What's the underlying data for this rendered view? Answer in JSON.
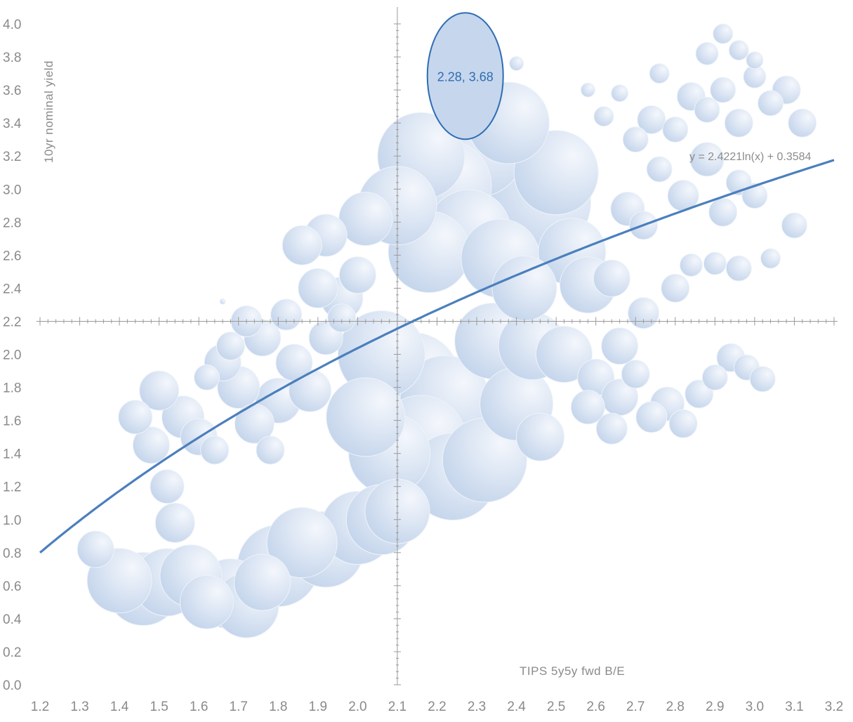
{
  "chart_data": {
    "type": "scatter",
    "title": "",
    "xlabel": "TIPS 5y5y fwd B/E",
    "ylabel": "10yr nominal yield",
    "xlim": [
      1.2,
      3.2
    ],
    "ylim": [
      0.0,
      4.0
    ],
    "x_ticks": [
      "1.2",
      "1.3",
      "1.4",
      "1.5",
      "1.6",
      "1.7",
      "1.8",
      "1.9",
      "2.0",
      "2.1",
      "2.2",
      "2.3",
      "2.4",
      "2.5",
      "2.6",
      "2.7",
      "2.8",
      "2.9",
      "3.0",
      "3.1",
      "3.2"
    ],
    "y_ticks": [
      "0.0",
      "0.2",
      "0.4",
      "0.6",
      "0.8",
      "1.0",
      "1.2",
      "1.4",
      "1.6",
      "1.8",
      "2.0",
      "2.2",
      "2.4",
      "2.6",
      "2.8",
      "3.0",
      "3.2",
      "3.4",
      "3.6",
      "3.8",
      "4.0"
    ],
    "axis_crossing": {
      "x": 2.1,
      "y": 2.2
    },
    "bubble_color": "#c9d8ec",
    "bubble_edge_color": "#eef3fa",
    "trendline": {
      "type": "logarithmic",
      "a": 2.4221,
      "b": 0.3584,
      "label": "y = 2.4221ln(x) + 0.3584",
      "color": "#4b7fbd"
    },
    "highlight": {
      "x": 2.28,
      "y": 3.68,
      "label": "2.28,  3.68",
      "color": "#2e6db3"
    },
    "points": [
      {
        "x": 1.34,
        "y": 0.82,
        "r": 26
      },
      {
        "x": 1.4,
        "y": 0.63,
        "r": 46
      },
      {
        "x": 1.46,
        "y": 0.58,
        "r": 52
      },
      {
        "x": 1.52,
        "y": 0.62,
        "r": 48
      },
      {
        "x": 1.58,
        "y": 0.66,
        "r": 44
      },
      {
        "x": 1.68,
        "y": 0.55,
        "r": 50
      },
      {
        "x": 1.72,
        "y": 0.48,
        "r": 46
      },
      {
        "x": 1.8,
        "y": 0.72,
        "r": 58
      },
      {
        "x": 1.86,
        "y": 0.86,
        "r": 50
      },
      {
        "x": 1.92,
        "y": 0.82,
        "r": 54
      },
      {
        "x": 2.0,
        "y": 0.95,
        "r": 52
      },
      {
        "x": 2.06,
        "y": 1.0,
        "r": 50
      },
      {
        "x": 2.1,
        "y": 1.05,
        "r": 46
      },
      {
        "x": 1.76,
        "y": 0.62,
        "r": 40
      },
      {
        "x": 1.62,
        "y": 0.5,
        "r": 38
      },
      {
        "x": 1.54,
        "y": 0.98,
        "r": 28
      },
      {
        "x": 1.52,
        "y": 1.2,
        "r": 24
      },
      {
        "x": 1.48,
        "y": 1.45,
        "r": 26
      },
      {
        "x": 1.44,
        "y": 1.62,
        "r": 24
      },
      {
        "x": 1.5,
        "y": 1.78,
        "r": 28
      },
      {
        "x": 1.56,
        "y": 1.62,
        "r": 30
      },
      {
        "x": 1.6,
        "y": 1.5,
        "r": 26
      },
      {
        "x": 1.64,
        "y": 1.42,
        "r": 20
      },
      {
        "x": 1.66,
        "y": 1.95,
        "r": 26
      },
      {
        "x": 1.7,
        "y": 1.8,
        "r": 30
      },
      {
        "x": 1.74,
        "y": 1.58,
        "r": 28
      },
      {
        "x": 1.78,
        "y": 1.42,
        "r": 20
      },
      {
        "x": 1.8,
        "y": 1.72,
        "r": 32
      },
      {
        "x": 1.84,
        "y": 1.95,
        "r": 26
      },
      {
        "x": 1.88,
        "y": 1.78,
        "r": 30
      },
      {
        "x": 1.92,
        "y": 2.1,
        "r": 24
      },
      {
        "x": 1.9,
        "y": 2.4,
        "r": 28
      },
      {
        "x": 1.96,
        "y": 2.34,
        "r": 30
      },
      {
        "x": 2.0,
        "y": 2.48,
        "r": 26
      },
      {
        "x": 1.86,
        "y": 2.66,
        "r": 28
      },
      {
        "x": 1.92,
        "y": 2.72,
        "r": 30
      },
      {
        "x": 2.02,
        "y": 2.82,
        "r": 38
      },
      {
        "x": 2.1,
        "y": 2.9,
        "r": 56
      },
      {
        "x": 2.16,
        "y": 3.2,
        "r": 62
      },
      {
        "x": 2.22,
        "y": 3.02,
        "r": 66
      },
      {
        "x": 2.3,
        "y": 3.24,
        "r": 68
      },
      {
        "x": 2.38,
        "y": 3.4,
        "r": 58
      },
      {
        "x": 2.46,
        "y": 2.92,
        "r": 72
      },
      {
        "x": 2.5,
        "y": 3.1,
        "r": 60
      },
      {
        "x": 2.18,
        "y": 2.62,
        "r": 58
      },
      {
        "x": 2.28,
        "y": 2.74,
        "r": 60
      },
      {
        "x": 2.36,
        "y": 2.58,
        "r": 56
      },
      {
        "x": 2.42,
        "y": 2.4,
        "r": 46
      },
      {
        "x": 2.54,
        "y": 2.62,
        "r": 48
      },
      {
        "x": 2.58,
        "y": 2.42,
        "r": 40
      },
      {
        "x": 2.06,
        "y": 2.0,
        "r": 62
      },
      {
        "x": 2.14,
        "y": 1.85,
        "r": 66
      },
      {
        "x": 2.22,
        "y": 1.72,
        "r": 64
      },
      {
        "x": 2.28,
        "y": 1.55,
        "r": 66
      },
      {
        "x": 2.32,
        "y": 1.36,
        "r": 60
      },
      {
        "x": 2.24,
        "y": 1.26,
        "r": 62
      },
      {
        "x": 2.16,
        "y": 1.48,
        "r": 64
      },
      {
        "x": 2.08,
        "y": 1.4,
        "r": 58
      },
      {
        "x": 2.02,
        "y": 1.62,
        "r": 56
      },
      {
        "x": 2.4,
        "y": 1.7,
        "r": 52
      },
      {
        "x": 2.44,
        "y": 2.05,
        "r": 48
      },
      {
        "x": 2.52,
        "y": 2.0,
        "r": 40
      },
      {
        "x": 2.34,
        "y": 2.08,
        "r": 54
      },
      {
        "x": 2.46,
        "y": 1.5,
        "r": 34
      },
      {
        "x": 2.58,
        "y": 1.68,
        "r": 24
      },
      {
        "x": 2.64,
        "y": 1.55,
        "r": 22
      },
      {
        "x": 2.6,
        "y": 1.86,
        "r": 26
      },
      {
        "x": 2.66,
        "y": 1.74,
        "r": 26
      },
      {
        "x": 2.7,
        "y": 1.88,
        "r": 20
      },
      {
        "x": 2.74,
        "y": 1.62,
        "r": 22
      },
      {
        "x": 2.78,
        "y": 1.7,
        "r": 24
      },
      {
        "x": 2.82,
        "y": 1.58,
        "r": 20
      },
      {
        "x": 2.86,
        "y": 1.76,
        "r": 20
      },
      {
        "x": 2.9,
        "y": 1.86,
        "r": 18
      },
      {
        "x": 2.94,
        "y": 1.98,
        "r": 20
      },
      {
        "x": 2.98,
        "y": 1.92,
        "r": 18
      },
      {
        "x": 3.02,
        "y": 1.85,
        "r": 18
      },
      {
        "x": 2.66,
        "y": 2.05,
        "r": 26
      },
      {
        "x": 2.72,
        "y": 2.25,
        "r": 22
      },
      {
        "x": 2.8,
        "y": 2.4,
        "r": 20
      },
      {
        "x": 2.84,
        "y": 2.54,
        "r": 16
      },
      {
        "x": 2.9,
        "y": 2.55,
        "r": 16
      },
      {
        "x": 2.96,
        "y": 2.52,
        "r": 18
      },
      {
        "x": 2.64,
        "y": 2.46,
        "r": 26
      },
      {
        "x": 2.68,
        "y": 2.88,
        "r": 24
      },
      {
        "x": 2.72,
        "y": 2.78,
        "r": 20
      },
      {
        "x": 2.76,
        "y": 3.12,
        "r": 18
      },
      {
        "x": 2.82,
        "y": 2.96,
        "r": 22
      },
      {
        "x": 2.88,
        "y": 3.18,
        "r": 24
      },
      {
        "x": 2.92,
        "y": 2.86,
        "r": 20
      },
      {
        "x": 2.96,
        "y": 3.04,
        "r": 18
      },
      {
        "x": 3.0,
        "y": 2.96,
        "r": 18
      },
      {
        "x": 3.04,
        "y": 2.58,
        "r": 14
      },
      {
        "x": 3.1,
        "y": 2.78,
        "r": 18
      },
      {
        "x": 2.7,
        "y": 3.3,
        "r": 18
      },
      {
        "x": 2.74,
        "y": 3.42,
        "r": 20
      },
      {
        "x": 2.8,
        "y": 3.36,
        "r": 18
      },
      {
        "x": 2.84,
        "y": 3.56,
        "r": 20
      },
      {
        "x": 2.88,
        "y": 3.48,
        "r": 18
      },
      {
        "x": 2.92,
        "y": 3.6,
        "r": 18
      },
      {
        "x": 2.96,
        "y": 3.4,
        "r": 20
      },
      {
        "x": 3.0,
        "y": 3.68,
        "r": 16
      },
      {
        "x": 3.04,
        "y": 3.52,
        "r": 18
      },
      {
        "x": 3.08,
        "y": 3.6,
        "r": 20
      },
      {
        "x": 3.12,
        "y": 3.4,
        "r": 20
      },
      {
        "x": 2.88,
        "y": 3.82,
        "r": 16
      },
      {
        "x": 2.92,
        "y": 3.94,
        "r": 14
      },
      {
        "x": 2.96,
        "y": 3.84,
        "r": 14
      },
      {
        "x": 3.0,
        "y": 3.78,
        "r": 12
      },
      {
        "x": 2.62,
        "y": 3.44,
        "r": 14
      },
      {
        "x": 2.66,
        "y": 3.58,
        "r": 12
      },
      {
        "x": 2.58,
        "y": 3.6,
        "r": 10
      },
      {
        "x": 2.4,
        "y": 3.76,
        "r": 10
      },
      {
        "x": 2.76,
        "y": 3.7,
        "r": 14
      },
      {
        "x": 1.72,
        "y": 2.2,
        "r": 22
      },
      {
        "x": 1.76,
        "y": 2.1,
        "r": 26
      },
      {
        "x": 1.82,
        "y": 2.24,
        "r": 22
      },
      {
        "x": 1.96,
        "y": 2.22,
        "r": 20
      },
      {
        "x": 1.68,
        "y": 2.05,
        "r": 20
      },
      {
        "x": 1.62,
        "y": 1.86,
        "r": 18
      },
      {
        "x": 1.66,
        "y": 2.32,
        "r": 4
      }
    ]
  }
}
